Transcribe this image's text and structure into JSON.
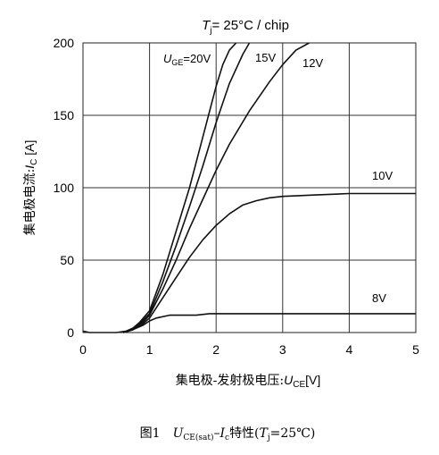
{
  "chart_data": {
    "type": "line",
    "title": "T_j= 25°C / chip",
    "title_parts": {
      "var": "T",
      "sub": "j",
      "rest": "= 25°C / chip"
    },
    "xlabel": "集电极-发射极电压:U_CE[V]",
    "xlabel_parts": {
      "prefix": "集电极-发射极电压:",
      "var": "U",
      "sub": "CE",
      "unit": "[V]"
    },
    "ylabel": "集电极电流:I_C [A]",
    "ylabel_parts": {
      "prefix": "集电极电流:",
      "var": "I",
      "sub": "C",
      "unit": " [A]"
    },
    "xlim": [
      0,
      5
    ],
    "ylim": [
      0,
      200
    ],
    "xticks": [
      0,
      1,
      2,
      3,
      4,
      5
    ],
    "yticks": [
      0,
      50,
      100,
      150,
      200
    ],
    "grid": true,
    "series": [
      {
        "name": "U_GE=20V",
        "label_parts": {
          "var": "U",
          "sub": "GE",
          "rest": "=20V"
        },
        "x": [
          0,
          0.1,
          0.5,
          0.65,
          0.75,
          0.85,
          1.0,
          1.2,
          1.4,
          1.6,
          1.8,
          2.0,
          2.1,
          2.2,
          2.3
        ],
        "y": [
          1,
          0,
          0,
          1,
          3,
          7,
          15,
          40,
          70,
          100,
          135,
          170,
          185,
          195,
          200
        ]
      },
      {
        "name": "15V",
        "x": [
          0.6,
          0.75,
          0.85,
          1.0,
          1.2,
          1.4,
          1.6,
          1.8,
          2.0,
          2.2,
          2.4,
          2.5
        ],
        "y": [
          0,
          2,
          6,
          13,
          35,
          60,
          87,
          115,
          145,
          172,
          192,
          200
        ]
      },
      {
        "name": "12V",
        "x": [
          0.6,
          0.75,
          0.9,
          1.0,
          1.2,
          1.4,
          1.6,
          1.8,
          2.0,
          2.2,
          2.5,
          2.8,
          3.0,
          3.2,
          3.4
        ],
        "y": [
          0,
          2,
          7,
          12,
          30,
          50,
          72,
          92,
          112,
          130,
          153,
          173,
          185,
          195,
          200
        ]
      },
      {
        "name": "10V",
        "x": [
          0.6,
          0.75,
          0.9,
          1.0,
          1.2,
          1.4,
          1.6,
          1.8,
          2.0,
          2.2,
          2.4,
          2.6,
          2.8,
          3.0,
          3.5,
          4.0,
          5.0
        ],
        "y": [
          0,
          2,
          6,
          10,
          24,
          38,
          52,
          64,
          74,
          82,
          88,
          91,
          93,
          94,
          95,
          96,
          96
        ]
      },
      {
        "name": "8V",
        "x": [
          0.6,
          0.75,
          0.9,
          1.0,
          1.1,
          1.3,
          1.5,
          1.7,
          1.9,
          5.0
        ],
        "y": [
          0,
          2,
          5,
          8,
          10,
          12,
          12,
          12,
          13,
          13
        ]
      }
    ],
    "annotations": [
      "U_GE=20V",
      "15V",
      "12V",
      "10V",
      "8V"
    ]
  },
  "caption": {
    "prefix": "图1",
    "var1": "U",
    "sub1": "CE(sat)",
    "dash": "–",
    "var2": "I",
    "sub2": "c",
    "text": "特性(",
    "var3": "T",
    "sub3": "j",
    "rest": "=25℃)"
  }
}
